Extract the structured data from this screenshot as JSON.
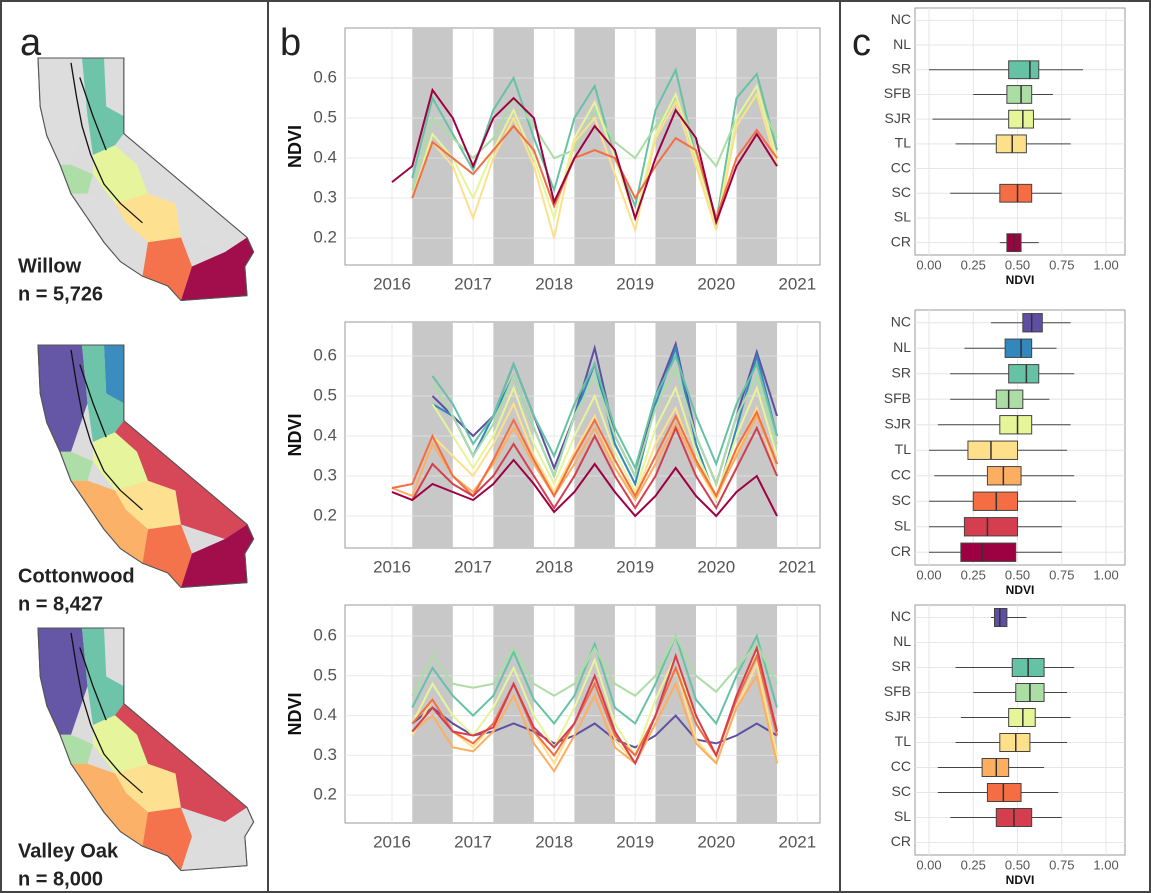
{
  "panels": [
    "a",
    "b",
    "c"
  ],
  "maps": [
    {
      "label": "Willow",
      "n": "n = 5,726"
    },
    {
      "label": "Cottonwood",
      "n": "n = 8,427"
    },
    {
      "label": "Valley Oak",
      "n": "n = 8,000"
    }
  ],
  "chart_data": [
    {
      "type": "line",
      "ylabel": "NDVI",
      "grid": true,
      "xlim": [
        2015.42,
        2021.28
      ],
      "xticks": [
        2016,
        2017,
        2018,
        2019,
        2020,
        2021
      ],
      "ylim": [
        0.133,
        0.725
      ],
      "yticks": [
        0.2,
        0.3,
        0.4,
        0.5,
        0.6
      ],
      "shaded": [
        [
          2016.25,
          2016.75
        ],
        [
          2017.25,
          2017.75
        ],
        [
          2018.25,
          2018.75
        ],
        [
          2019.25,
          2019.75
        ],
        [
          2020.25,
          2020.75
        ]
      ],
      "x": [
        2016.0,
        2016.25,
        2016.5,
        2016.75,
        2017.0,
        2017.25,
        2017.5,
        2017.75,
        2018.0,
        2018.25,
        2018.5,
        2018.75,
        2019.0,
        2019.25,
        2019.5,
        2019.75,
        2020.0,
        2020.25,
        2020.5,
        2020.75
      ],
      "series": [
        {
          "color": "#66c2a5",
          "values": [
            null,
            0.35,
            0.55,
            0.46,
            0.37,
            0.52,
            0.6,
            0.45,
            0.32,
            0.5,
            0.58,
            0.4,
            0.28,
            0.52,
            0.62,
            0.4,
            0.24,
            0.55,
            0.61,
            0.42
          ]
        },
        {
          "color": "#abdda4",
          "values": [
            null,
            0.32,
            0.5,
            0.45,
            0.4,
            0.45,
            0.55,
            0.48,
            0.4,
            0.42,
            0.52,
            0.44,
            0.4,
            0.48,
            0.55,
            0.44,
            0.38,
            0.5,
            0.55,
            0.45
          ]
        },
        {
          "color": "#e6f598",
          "values": [
            null,
            0.3,
            0.46,
            0.4,
            0.3,
            0.42,
            0.52,
            0.4,
            0.25,
            0.45,
            0.54,
            0.4,
            0.25,
            0.46,
            0.56,
            0.4,
            0.23,
            0.5,
            0.58,
            0.4
          ]
        },
        {
          "color": "#fee08b",
          "values": [
            null,
            0.3,
            0.44,
            0.38,
            0.25,
            0.4,
            0.5,
            0.38,
            0.2,
            0.44,
            0.5,
            0.36,
            0.22,
            0.45,
            0.54,
            0.38,
            0.22,
            0.48,
            0.56,
            0.38
          ]
        },
        {
          "color": "#f46d43",
          "values": [
            null,
            0.3,
            0.44,
            0.4,
            0.36,
            0.42,
            0.48,
            0.42,
            0.28,
            0.4,
            0.42,
            0.4,
            0.3,
            0.38,
            0.45,
            0.42,
            0.25,
            0.4,
            0.47,
            0.4
          ]
        },
        {
          "color": "#9e0142",
          "values": [
            0.34,
            0.38,
            0.57,
            0.5,
            0.38,
            0.5,
            0.55,
            0.5,
            0.29,
            0.4,
            0.48,
            0.42,
            0.25,
            0.4,
            0.52,
            0.45,
            0.24,
            0.38,
            0.46,
            0.38
          ]
        }
      ]
    },
    {
      "type": "line",
      "ylabel": "NDVI",
      "grid": true,
      "xlim": [
        2015.42,
        2021.28
      ],
      "xticks": [
        2016,
        2017,
        2018,
        2019,
        2020,
        2021
      ],
      "ylim": [
        0.12,
        0.685
      ],
      "yticks": [
        0.2,
        0.3,
        0.4,
        0.5,
        0.6
      ],
      "shaded": [
        [
          2016.25,
          2016.75
        ],
        [
          2017.25,
          2017.75
        ],
        [
          2018.25,
          2018.75
        ],
        [
          2019.25,
          2019.75
        ],
        [
          2020.25,
          2020.75
        ]
      ],
      "x": [
        2016.0,
        2016.25,
        2016.5,
        2016.75,
        2017.0,
        2017.25,
        2017.5,
        2017.75,
        2018.0,
        2018.25,
        2018.5,
        2018.75,
        2019.0,
        2019.25,
        2019.5,
        2019.75,
        2020.0,
        2020.25,
        2020.5,
        2020.75
      ],
      "series": [
        {
          "color": "#5e4fa2",
          "values": [
            null,
            null,
            0.5,
            0.45,
            0.4,
            0.45,
            0.58,
            0.45,
            0.32,
            0.45,
            0.62,
            0.4,
            0.3,
            0.5,
            0.63,
            0.4,
            0.28,
            0.45,
            0.61,
            0.45
          ]
        },
        {
          "color": "#3288bd",
          "values": [
            null,
            null,
            0.48,
            0.45,
            0.35,
            0.45,
            0.55,
            0.42,
            0.3,
            0.45,
            0.58,
            0.38,
            0.28,
            0.48,
            0.62,
            0.38,
            0.24,
            0.42,
            0.6,
            0.4
          ]
        },
        {
          "color": "#66c2a5",
          "values": [
            null,
            null,
            0.55,
            0.48,
            0.38,
            0.45,
            0.58,
            0.45,
            0.35,
            0.48,
            0.58,
            0.42,
            0.32,
            0.5,
            0.6,
            0.45,
            0.33,
            0.48,
            0.58,
            0.4
          ]
        },
        {
          "color": "#abdda4",
          "values": [
            null,
            null,
            0.53,
            0.45,
            0.35,
            0.43,
            0.55,
            0.42,
            0.3,
            0.45,
            0.55,
            0.4,
            0.3,
            0.47,
            0.57,
            0.4,
            0.28,
            0.45,
            0.55,
            0.38
          ]
        },
        {
          "color": "#e6f598",
          "values": [
            null,
            null,
            0.48,
            0.4,
            0.32,
            0.4,
            0.52,
            0.38,
            0.28,
            0.4,
            0.5,
            0.36,
            0.26,
            0.42,
            0.52,
            0.36,
            0.25,
            0.4,
            0.52,
            0.35
          ]
        },
        {
          "color": "#fee08b",
          "values": [
            null,
            null,
            0.4,
            0.35,
            0.3,
            0.38,
            0.48,
            0.35,
            0.26,
            0.36,
            0.45,
            0.32,
            0.25,
            0.38,
            0.47,
            0.33,
            0.24,
            0.36,
            0.47,
            0.3
          ]
        },
        {
          "color": "#fdae61",
          "values": [
            0.27,
            0.25,
            0.38,
            0.3,
            0.26,
            0.33,
            0.42,
            0.33,
            0.25,
            0.33,
            0.42,
            0.32,
            0.24,
            0.33,
            0.43,
            0.33,
            0.25,
            0.35,
            0.45,
            0.33
          ]
        },
        {
          "color": "#f46d43",
          "values": [
            0.27,
            0.28,
            0.4,
            0.3,
            0.25,
            0.34,
            0.44,
            0.34,
            0.25,
            0.35,
            0.44,
            0.34,
            0.25,
            0.35,
            0.45,
            0.34,
            0.25,
            0.37,
            0.46,
            0.33
          ]
        },
        {
          "color": "#d53e4f",
          "values": [
            0.26,
            0.24,
            0.33,
            0.28,
            0.25,
            0.3,
            0.38,
            0.3,
            0.22,
            0.3,
            0.4,
            0.3,
            0.22,
            0.3,
            0.42,
            0.3,
            0.22,
            0.32,
            0.42,
            0.3
          ]
        },
        {
          "color": "#9e0142",
          "values": [
            0.26,
            0.24,
            0.28,
            0.26,
            0.24,
            0.28,
            0.34,
            0.28,
            0.21,
            0.26,
            0.33,
            0.26,
            0.2,
            0.25,
            0.32,
            0.25,
            0.2,
            0.26,
            0.3,
            0.2
          ]
        }
      ]
    },
    {
      "type": "line",
      "ylabel": "NDVI",
      "grid": true,
      "xlim": [
        2015.42,
        2021.28
      ],
      "xticks": [
        2016,
        2017,
        2018,
        2019,
        2020,
        2021
      ],
      "ylim": [
        0.13,
        0.678
      ],
      "yticks": [
        0.2,
        0.3,
        0.4,
        0.5,
        0.6
      ],
      "shaded": [
        [
          2016.25,
          2016.75
        ],
        [
          2017.25,
          2017.75
        ],
        [
          2018.25,
          2018.75
        ],
        [
          2019.25,
          2019.75
        ],
        [
          2020.25,
          2020.75
        ]
      ],
      "x": [
        2016.0,
        2016.25,
        2016.5,
        2016.75,
        2017.0,
        2017.25,
        2017.5,
        2017.75,
        2018.0,
        2018.25,
        2018.5,
        2018.75,
        2019.0,
        2019.25,
        2019.5,
        2019.75,
        2020.0,
        2020.25,
        2020.5,
        2020.75
      ],
      "series": [
        {
          "color": "#5e4fa2",
          "values": [
            null,
            0.38,
            0.42,
            0.38,
            0.35,
            0.36,
            0.38,
            0.36,
            0.33,
            0.35,
            0.38,
            0.34,
            0.32,
            0.35,
            0.4,
            0.34,
            0.33,
            0.35,
            0.38,
            0.35
          ]
        },
        {
          "color": "#66c2a5",
          "values": [
            null,
            0.42,
            0.52,
            0.45,
            0.4,
            0.45,
            0.56,
            0.44,
            0.38,
            0.45,
            0.58,
            0.42,
            0.38,
            0.48,
            0.6,
            0.44,
            0.38,
            0.5,
            0.6,
            0.42
          ]
        },
        {
          "color": "#abdda4",
          "values": [
            null,
            0.45,
            0.55,
            0.48,
            0.47,
            0.48,
            0.57,
            0.48,
            0.45,
            0.48,
            0.57,
            0.48,
            0.45,
            0.5,
            0.6,
            0.5,
            0.46,
            0.52,
            0.58,
            0.48
          ]
        },
        {
          "color": "#e6f598",
          "values": [
            null,
            0.38,
            0.48,
            0.4,
            0.35,
            0.42,
            0.52,
            0.4,
            0.32,
            0.42,
            0.54,
            0.38,
            0.3,
            0.44,
            0.55,
            0.38,
            0.3,
            0.45,
            0.56,
            0.36
          ]
        },
        {
          "color": "#fee08b",
          "values": [
            null,
            0.35,
            0.44,
            0.36,
            0.32,
            0.38,
            0.48,
            0.36,
            0.28,
            0.38,
            0.5,
            0.34,
            0.28,
            0.4,
            0.52,
            0.34,
            0.28,
            0.42,
            0.53,
            0.3
          ]
        },
        {
          "color": "#fdae61",
          "values": [
            null,
            0.36,
            0.4,
            0.32,
            0.31,
            0.36,
            0.45,
            0.33,
            0.26,
            0.35,
            0.45,
            0.32,
            0.28,
            0.38,
            0.48,
            0.33,
            0.28,
            0.42,
            0.5,
            0.28
          ]
        },
        {
          "color": "#f46d43",
          "values": [
            null,
            0.38,
            0.44,
            0.36,
            0.33,
            0.38,
            0.48,
            0.36,
            0.3,
            0.38,
            0.48,
            0.35,
            0.3,
            0.4,
            0.52,
            0.38,
            0.3,
            0.44,
            0.55,
            0.35
          ]
        },
        {
          "color": "#d53e4f",
          "values": [
            null,
            0.36,
            0.42,
            0.36,
            0.35,
            0.37,
            0.48,
            0.37,
            0.32,
            0.38,
            0.5,
            0.36,
            0.28,
            0.4,
            0.55,
            0.4,
            0.3,
            0.45,
            0.57,
            0.36
          ]
        }
      ]
    },
    {
      "type": "box",
      "xlabel": "NDVI",
      "grid": true,
      "xlim": [
        -0.079,
        1.107
      ],
      "xticks": [
        {
          "value": 0,
          "label": "0.00"
        },
        {
          "value": 0.25,
          "label": "0.25"
        },
        {
          "value": 0.5,
          "label": "0.50"
        },
        {
          "value": 0.75,
          "label": "0.75"
        },
        {
          "value": 1,
          "label": "1.00"
        }
      ],
      "categories": [
        "NC",
        "NL",
        "SR",
        "SFB",
        "SJR",
        "TL",
        "CC",
        "SC",
        "SL",
        "CR"
      ],
      "colors": [
        "#5e4fa2",
        "#3288bd",
        "#66c2a5",
        "#abdda4",
        "#e6f598",
        "#fee08b",
        "#fdae61",
        "#f46d43",
        "#d53e4f",
        "#9e0142"
      ],
      "boxes": [
        null,
        null,
        [
          0,
          0.45,
          0.57,
          0.62,
          0.87
        ],
        [
          0.25,
          0.44,
          0.52,
          0.58,
          0.7
        ],
        [
          0.02,
          0.45,
          0.53,
          0.59,
          0.8
        ],
        [
          0.15,
          0.38,
          0.47,
          0.55,
          0.8
        ],
        null,
        [
          0.12,
          0.4,
          0.5,
          0.58,
          0.75
        ],
        null,
        [
          0.4,
          0.44,
          0.48,
          0.52,
          0.62
        ]
      ]
    },
    {
      "type": "box",
      "xlabel": "NDVI",
      "grid": true,
      "xlim": [
        -0.079,
        1.107
      ],
      "xticks": [
        {
          "value": 0,
          "label": "0.00"
        },
        {
          "value": 0.25,
          "label": "0.25"
        },
        {
          "value": 0.5,
          "label": "0.50"
        },
        {
          "value": 0.75,
          "label": "0.75"
        },
        {
          "value": 1,
          "label": "1.00"
        }
      ],
      "categories": [
        "NC",
        "NL",
        "SR",
        "SFB",
        "SJR",
        "TL",
        "CC",
        "SC",
        "SL",
        "CR"
      ],
      "colors": [
        "#5e4fa2",
        "#3288bd",
        "#66c2a5",
        "#abdda4",
        "#e6f598",
        "#fee08b",
        "#fdae61",
        "#f46d43",
        "#d53e4f",
        "#9e0142"
      ],
      "boxes": [
        [
          0.35,
          0.53,
          0.58,
          0.64,
          0.8
        ],
        [
          0.2,
          0.43,
          0.52,
          0.58,
          0.72
        ],
        [
          0.12,
          0.45,
          0.55,
          0.62,
          0.82
        ],
        [
          0.12,
          0.38,
          0.45,
          0.53,
          0.68
        ],
        [
          0.05,
          0.4,
          0.5,
          0.58,
          0.8
        ],
        [
          0,
          0.22,
          0.35,
          0.5,
          0.78
        ],
        [
          0.03,
          0.33,
          0.42,
          0.52,
          0.82
        ],
        [
          0,
          0.25,
          0.38,
          0.5,
          0.83
        ],
        [
          0,
          0.2,
          0.33,
          0.5,
          0.75
        ],
        [
          0,
          0.18,
          0.3,
          0.49,
          0.75
        ]
      ]
    },
    {
      "type": "box",
      "xlabel": "NDVI",
      "grid": true,
      "xlim": [
        -0.079,
        1.107
      ],
      "xticks": [
        {
          "value": 0,
          "label": "0.00"
        },
        {
          "value": 0.25,
          "label": "0.25"
        },
        {
          "value": 0.5,
          "label": "0.50"
        },
        {
          "value": 0.75,
          "label": "0.75"
        },
        {
          "value": 1,
          "label": "1.00"
        }
      ],
      "categories": [
        "NC",
        "NL",
        "SR",
        "SFB",
        "SJR",
        "TL",
        "CC",
        "SC",
        "SL",
        "CR"
      ],
      "colors": [
        "#5e4fa2",
        "#3288bd",
        "#66c2a5",
        "#abdda4",
        "#e6f598",
        "#fee08b",
        "#fdae61",
        "#f46d43",
        "#d53e4f",
        "#9e0142"
      ],
      "boxes": [
        [
          0.35,
          0.37,
          0.4,
          0.44,
          0.55
        ],
        null,
        [
          0.15,
          0.47,
          0.56,
          0.65,
          0.82
        ],
        [
          0.25,
          0.49,
          0.57,
          0.65,
          0.78
        ],
        [
          0.18,
          0.45,
          0.53,
          0.6,
          0.8
        ],
        [
          0.15,
          0.4,
          0.49,
          0.57,
          0.78
        ],
        [
          0.05,
          0.3,
          0.38,
          0.45,
          0.65
        ],
        [
          0.05,
          0.33,
          0.42,
          0.52,
          0.73
        ],
        [
          0.12,
          0.38,
          0.48,
          0.58,
          0.75
        ],
        null
      ]
    }
  ]
}
